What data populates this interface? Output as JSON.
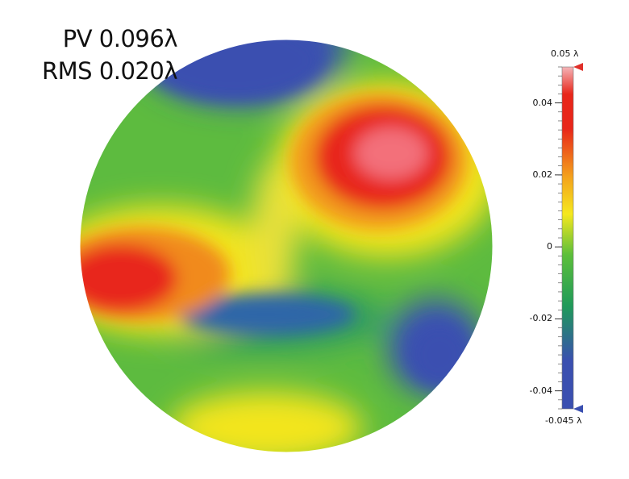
{
  "stats": {
    "pv": "PV 0.096λ",
    "rms": "RMS 0.020λ"
  },
  "colorbar": {
    "max_label": "0.05 λ",
    "min_label": "-0.045 λ",
    "max": 0.05,
    "min": -0.045,
    "ticks": [
      {
        "value": 0.04,
        "label": "0.04"
      },
      {
        "value": 0.02,
        "label": "0.02"
      },
      {
        "value": 0,
        "label": "0"
      },
      {
        "value": -0.02,
        "label": "-0.02"
      },
      {
        "value": -0.04,
        "label": "-0.04"
      }
    ],
    "colors": [
      "#3a4fb0",
      "#2aa848",
      "#f5e81e",
      "#ee2a1a",
      "#f4a0a8"
    ]
  },
  "wavefront_map": {
    "unit": "λ",
    "features": [
      {
        "kind": "peak",
        "value": 0.05
      },
      {
        "kind": "peak",
        "value": 0.045
      },
      {
        "kind": "valley",
        "value": -0.045
      },
      {
        "kind": "valley",
        "value": -0.04
      },
      {
        "kind": "valley",
        "value": -0.035
      }
    ]
  }
}
